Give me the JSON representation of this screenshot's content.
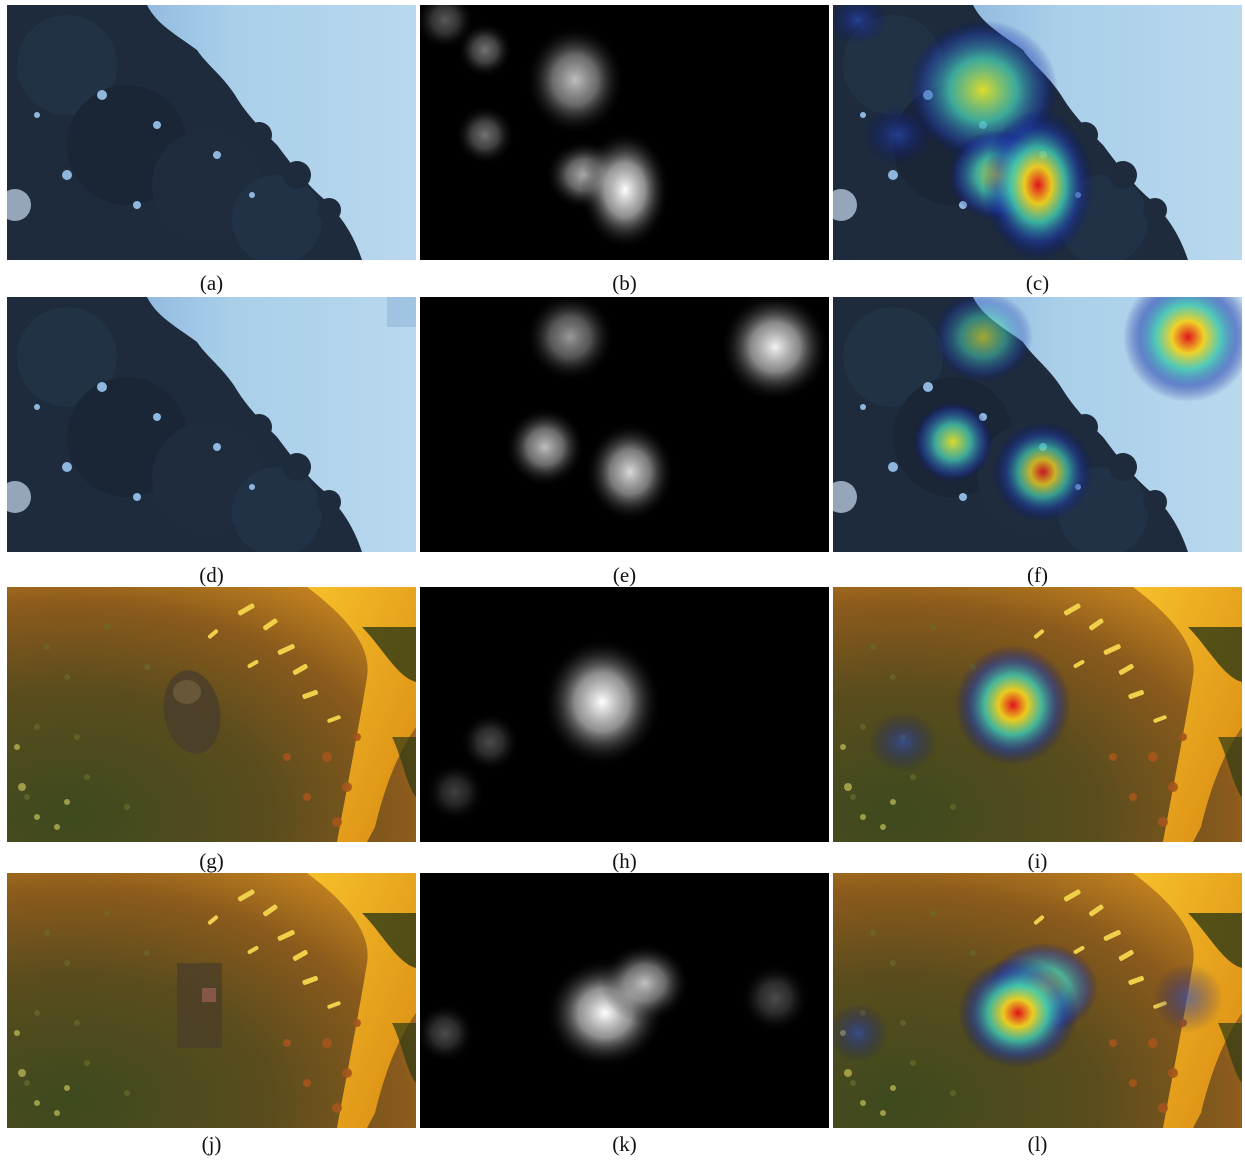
{
  "figure": {
    "panels": [
      {
        "label": "(a)",
        "type": "tree-image",
        "variant": "original"
      },
      {
        "label": "(b)",
        "type": "saliency-gray"
      },
      {
        "label": "(c)",
        "type": "saliency-heatmap-overlay"
      },
      {
        "label": "(d)",
        "type": "tree-image",
        "variant": "reconstructed"
      },
      {
        "label": "(e)",
        "type": "saliency-gray"
      },
      {
        "label": "(f)",
        "type": "saliency-heatmap-overlay"
      },
      {
        "label": "(g)",
        "type": "sunflower-bee-image",
        "variant": "original"
      },
      {
        "label": "(h)",
        "type": "saliency-gray"
      },
      {
        "label": "(i)",
        "type": "saliency-heatmap-overlay"
      },
      {
        "label": "(j)",
        "type": "sunflower-bee-image",
        "variant": "reconstructed"
      },
      {
        "label": "(k)",
        "type": "saliency-gray"
      },
      {
        "label": "(l)",
        "type": "saliency-heatmap-overlay"
      }
    ]
  }
}
